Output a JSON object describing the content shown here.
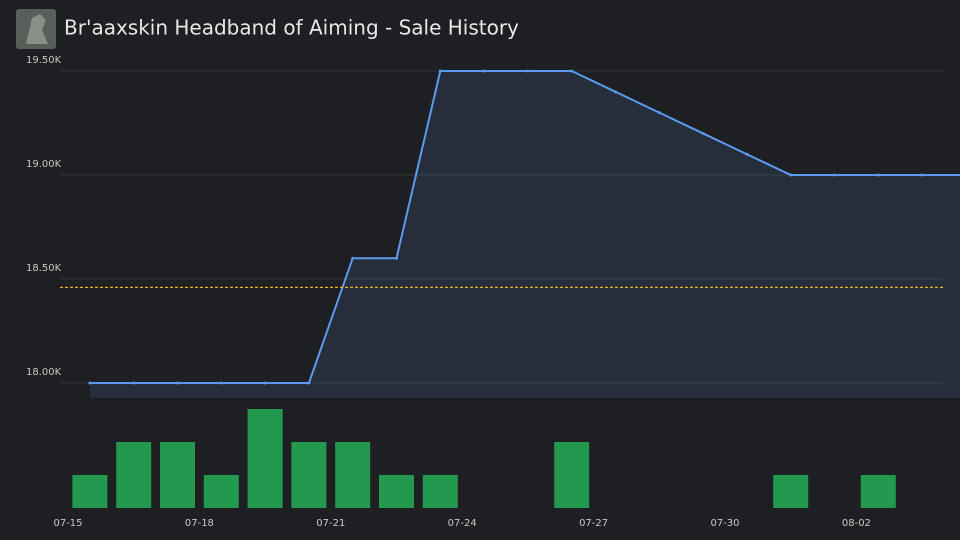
{
  "header": {
    "title": "Br'aaxskin Headband of Aiming - Sale History"
  },
  "chart_data": {
    "type": "line",
    "categories": [
      "07-15",
      null,
      null,
      "07-18",
      null,
      null,
      "07-21",
      null,
      null,
      "07-24",
      null,
      null,
      "07-27",
      null,
      null,
      "07-30",
      null,
      null,
      "08-02",
      null,
      null
    ],
    "values": [
      18000,
      18000,
      18000,
      18000,
      18000,
      18000,
      18600,
      18600,
      19500,
      19500,
      19500,
      19500,
      19400,
      19300,
      19200,
      19100,
      19000,
      19000,
      19000,
      19000,
      19000
    ],
    "color": "#5b9bef",
    "ylim": [
      17928,
      19553
    ],
    "yticks": [
      {
        "value": 18000,
        "label": "18.00K"
      },
      {
        "value": 18500,
        "label": "18.50K"
      },
      {
        "value": 19000,
        "label": "19.00K"
      },
      {
        "value": 19500,
        "label": "19.50K"
      }
    ],
    "grid": true,
    "reference_line": {
      "value": 18460,
      "color": "#e6b422"
    },
    "bars": {
      "type": "bar",
      "values": [
        1,
        2,
        2,
        1,
        3,
        2,
        2,
        1,
        1,
        0,
        0,
        2,
        0,
        0,
        0,
        0,
        1,
        0,
        1,
        0,
        0
      ],
      "color": "#23994f",
      "ylim": [
        0,
        3
      ]
    }
  }
}
